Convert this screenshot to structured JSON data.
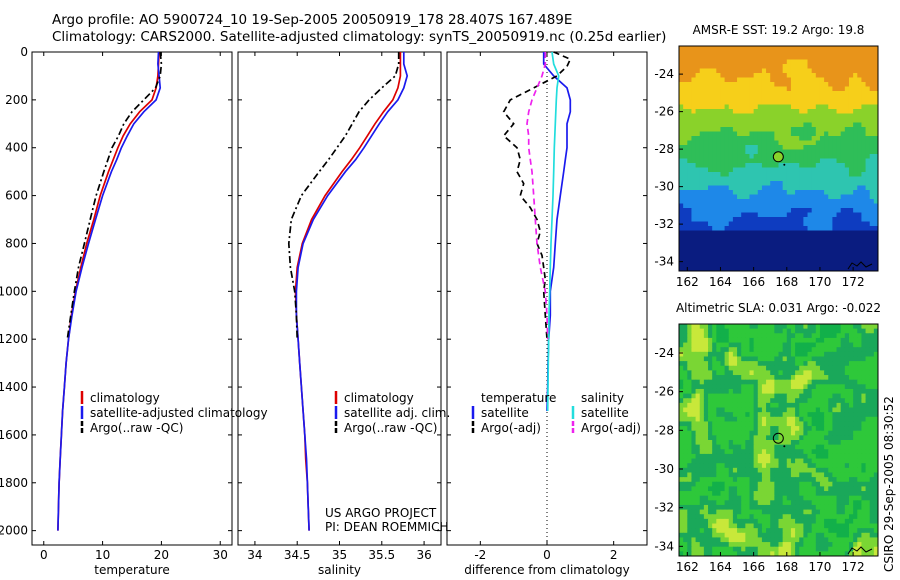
{
  "header": {
    "title_line1": "Argo profile: AO 5900724_10 19-Sep-2005 20050919_178 28.407S 167.489E",
    "title_line2": "Climatology: CARS2000. Satellite-adjusted climatology: synTS_20050919.nc (0.25d earlier)"
  },
  "credit": {
    "project": "US ARGO PROJECT",
    "pi": "PI: DEAN ROEMMICH",
    "timestamp": "CSIRO 29-Sep-2005 08:30:52"
  },
  "chart_data": [
    {
      "type": "line",
      "xlabel": "temperature",
      "ylabel": "",
      "xlim": [
        -2,
        32
      ],
      "ylim": [
        2060,
        0
      ],
      "xticks": [
        0,
        10,
        20,
        30
      ],
      "yticks": [
        0,
        200,
        400,
        600,
        800,
        1000,
        1200,
        1400,
        1600,
        1800,
        2000
      ],
      "legend_position": "lower-right",
      "series": [
        {
          "name": "climatology",
          "color": "#dd0000",
          "dash": "solid",
          "depth": [
            0,
            50,
            100,
            150,
            200,
            250,
            300,
            350,
            400,
            450,
            500,
            600,
            700,
            800,
            900,
            1000,
            1100,
            1200,
            1300,
            1400,
            1500,
            1600,
            1700,
            1800,
            1900,
            2000
          ],
          "values": [
            19.6,
            19.5,
            19.4,
            19.1,
            18.4,
            16.3,
            14.7,
            13.5,
            12.6,
            11.8,
            11.0,
            9.6,
            8.5,
            7.3,
            6.3,
            5.4,
            4.7,
            4.2,
            3.8,
            3.5,
            3.2,
            3.0,
            2.8,
            2.6,
            2.5,
            2.4
          ]
        },
        {
          "name": "satellite-adjusted climatology",
          "color": "#1a1aee",
          "dash": "solid",
          "depth": [
            0,
            50,
            100,
            150,
            200,
            250,
            300,
            350,
            400,
            450,
            500,
            600,
            700,
            800,
            900,
            1000,
            1100,
            1200,
            1300,
            1400,
            1500,
            1600,
            1700,
            1800,
            1900,
            2000
          ],
          "values": [
            19.5,
            19.4,
            19.6,
            19.8,
            19.1,
            17.0,
            15.3,
            14.2,
            13.2,
            12.4,
            11.5,
            10.0,
            8.8,
            7.6,
            6.5,
            5.5,
            4.8,
            4.2,
            3.8,
            3.5,
            3.2,
            3.0,
            2.8,
            2.6,
            2.5,
            2.4
          ]
        },
        {
          "name": "Argo(..raw -QC)",
          "color": "#000000",
          "dash": "dashdot",
          "depth": [
            0,
            50,
            100,
            150,
            200,
            250,
            300,
            350,
            400,
            450,
            500,
            600,
            700,
            800,
            900,
            1000,
            1100,
            1200
          ],
          "values": [
            19.8,
            20.0,
            19.8,
            19.0,
            17.0,
            15.0,
            13.6,
            12.7,
            11.6,
            10.9,
            10.2,
            8.9,
            7.9,
            6.9,
            5.9,
            5.2,
            4.6,
            4.0
          ]
        }
      ]
    },
    {
      "type": "line",
      "xlabel": "salinity",
      "ylabel": "",
      "xlim": [
        33.8,
        36.2
      ],
      "ylim": [
        2060,
        0
      ],
      "xticks": [
        34,
        34.5,
        35,
        35.5,
        36
      ],
      "yticks": [
        0,
        200,
        400,
        600,
        800,
        1000,
        1200,
        1400,
        1600,
        1800,
        2000
      ],
      "legend_position": "lower-right",
      "series": [
        {
          "name": "climatology",
          "color": "#dd0000",
          "dash": "solid",
          "depth": [
            0,
            50,
            100,
            150,
            200,
            250,
            300,
            350,
            400,
            450,
            500,
            600,
            700,
            800,
            900,
            1000,
            1100,
            1200,
            1300,
            1400,
            1500,
            1600,
            1700,
            1800,
            1900,
            2000
          ],
          "values": [
            35.72,
            35.72,
            35.72,
            35.69,
            35.63,
            35.52,
            35.42,
            35.33,
            35.24,
            35.14,
            35.03,
            34.83,
            34.67,
            34.56,
            34.5,
            34.48,
            34.49,
            34.51,
            34.53,
            34.55,
            34.57,
            34.59,
            34.6,
            34.62,
            34.63,
            34.64
          ]
        },
        {
          "name": "satellite adj. clim.",
          "color": "#1a1aee",
          "dash": "solid",
          "depth": [
            0,
            50,
            100,
            150,
            200,
            250,
            300,
            350,
            400,
            450,
            500,
            600,
            700,
            800,
            900,
            1000,
            1100,
            1200,
            1300,
            1400,
            1500,
            1600,
            1700,
            1800,
            1900,
            2000
          ],
          "values": [
            35.76,
            35.76,
            35.8,
            35.76,
            35.69,
            35.57,
            35.47,
            35.38,
            35.29,
            35.19,
            35.07,
            34.86,
            34.69,
            34.57,
            34.51,
            34.49,
            34.49,
            34.51,
            34.53,
            34.55,
            34.57,
            34.59,
            34.61,
            34.62,
            34.63,
            34.64
          ]
        },
        {
          "name": "Argo(..raw -QC)",
          "color": "#000000",
          "dash": "dashdot",
          "depth": [
            0,
            50,
            100,
            150,
            200,
            250,
            300,
            350,
            400,
            450,
            500,
            600,
            700,
            800,
            900,
            1000,
            1100,
            1200
          ],
          "values": [
            35.7,
            35.7,
            35.66,
            35.5,
            35.35,
            35.23,
            35.15,
            35.07,
            34.97,
            34.87,
            34.76,
            34.55,
            34.43,
            34.4,
            34.42,
            34.47,
            34.49,
            34.5
          ]
        }
      ]
    },
    {
      "type": "line",
      "xlabel": "difference from climatology",
      "ylabel": "",
      "xlim": [
        -3,
        3
      ],
      "ylim": [
        2060,
        0
      ],
      "xticks": [
        -2,
        0,
        2
      ],
      "yticks": [
        0,
        200,
        400,
        600,
        800,
        1000,
        1200,
        1400,
        1600,
        1800,
        2000
      ],
      "legend_position": "lower",
      "legend_groups": [
        "temperature",
        "salinity"
      ],
      "series": [
        {
          "name": "satellite",
          "group": "temperature",
          "color": "#1a1aee",
          "dash": "solid",
          "depth": [
            0,
            50,
            100,
            150,
            200,
            250,
            300,
            350,
            400,
            450,
            500,
            600,
            700,
            800,
            900,
            1000,
            1100,
            1200,
            1300,
            1400,
            1500
          ],
          "values": [
            -0.1,
            -0.1,
            0.2,
            0.6,
            0.7,
            0.7,
            0.6,
            0.6,
            0.6,
            0.55,
            0.5,
            0.4,
            0.3,
            0.25,
            0.2,
            0.1,
            0.1,
            0.05,
            0.03,
            0.02,
            0.0
          ]
        },
        {
          "name": "Argo(-adj)",
          "group": "temperature",
          "color": "#000000",
          "dash": "dash",
          "depth": [
            0,
            30,
            60,
            100,
            150,
            200,
            250,
            300,
            350,
            400,
            450,
            500,
            550,
            600,
            650,
            700,
            750,
            800,
            850,
            900,
            950,
            1000,
            1100,
            1200
          ],
          "values": [
            0.2,
            0.7,
            0.6,
            0.3,
            -0.4,
            -1.1,
            -1.3,
            -1.0,
            -1.3,
            -0.9,
            -0.8,
            -0.9,
            -0.7,
            -0.8,
            -0.5,
            -0.3,
            -0.2,
            -0.3,
            -0.15,
            -0.1,
            -0.05,
            -0.1,
            -0.05,
            0.0
          ]
        },
        {
          "name": "satellite",
          "group": "salinity",
          "color": "#22dddd",
          "dash": "solid",
          "depth": [
            0,
            50,
            100,
            150,
            200,
            300,
            400,
            500,
            600,
            700,
            800,
            900,
            1000,
            1100,
            1200,
            1300,
            1400,
            1500
          ],
          "values": [
            0.15,
            0.2,
            0.35,
            0.3,
            0.28,
            0.25,
            0.22,
            0.2,
            0.18,
            0.15,
            0.12,
            0.1,
            0.08,
            0.06,
            0.05,
            0.04,
            0.03,
            0.02
          ]
        },
        {
          "name": "Argo(-adj)",
          "group": "salinity",
          "color": "#ee22ee",
          "dash": "dash",
          "depth": [
            0,
            50,
            100,
            150,
            200,
            250,
            300,
            350,
            400,
            450,
            500,
            600,
            700,
            800,
            900,
            1000,
            1100,
            1200
          ],
          "values": [
            -0.05,
            -0.05,
            -0.15,
            -0.3,
            -0.45,
            -0.55,
            -0.6,
            -0.55,
            -0.55,
            -0.5,
            -0.45,
            -0.4,
            -0.35,
            -0.3,
            -0.2,
            -0.05,
            0.0,
            0.02
          ]
        }
      ]
    },
    {
      "type": "heatmap",
      "title": "AMSR-E SST: 19.2  Argo: 19.8",
      "xlim": [
        161.5,
        173.5
      ],
      "ylim": [
        -34.5,
        -22.5
      ],
      "xticks": [
        162,
        164,
        166,
        168,
        170,
        172
      ],
      "yticks": [
        -24,
        -26,
        -28,
        -30,
        -32,
        -34
      ],
      "profile_location": {
        "lon": 167.489,
        "lat": -28.407
      },
      "colors": [
        "#e8941a",
        "#f6cf1a",
        "#8ad22a",
        "#2fbe58",
        "#2ec5b0",
        "#1e88e8",
        "#0e3cc0",
        "#0a1c80"
      ]
    },
    {
      "type": "heatmap",
      "title": "Altimetric SLA: 0.031  Argo: -0.022",
      "xlim": [
        161.5,
        173.5
      ],
      "ylim": [
        -34.5,
        -22.5
      ],
      "xticks": [
        162,
        164,
        166,
        168,
        170,
        172
      ],
      "yticks": [
        -24,
        -26,
        -28,
        -30,
        -32,
        -34
      ],
      "profile_location": {
        "lon": 167.489,
        "lat": -28.407
      },
      "colors": [
        "#12b04a",
        "#2ec83a",
        "#7ad634",
        "#c8e83a",
        "#1aa85a"
      ]
    }
  ]
}
